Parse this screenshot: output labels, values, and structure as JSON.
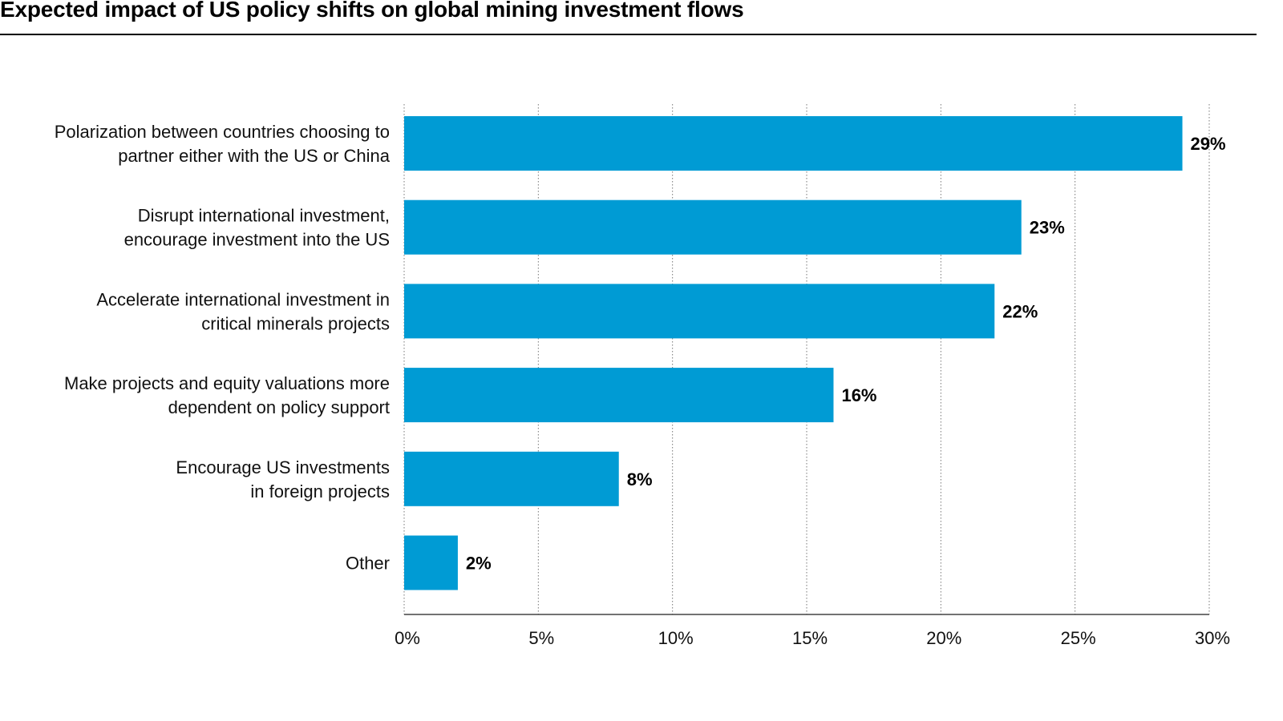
{
  "chart_data": {
    "type": "bar",
    "orientation": "horizontal",
    "title": "Expected impact of US policy shifts on global mining investment flows",
    "categories": [
      [
        "Polarization between countries choosing to",
        "partner either with the US or China"
      ],
      [
        "Disrupt international investment,",
        "encourage investment into the US"
      ],
      [
        "Accelerate international investment in",
        "critical minerals projects"
      ],
      [
        "Make projects and equity valuations more",
        "dependent on policy support"
      ],
      [
        "Encourage US investments",
        "in foreign projects"
      ],
      [
        "Other"
      ]
    ],
    "values": [
      29,
      23,
      22,
      16,
      8,
      2
    ],
    "value_labels": [
      "29%",
      "23%",
      "22%",
      "16%",
      "8%",
      "2%"
    ],
    "xlim": [
      0,
      30
    ],
    "xticks": [
      0,
      5,
      10,
      15,
      20,
      25,
      30
    ],
    "xtick_labels": [
      "0%",
      "5%",
      "10%",
      "15%",
      "20%",
      "25%",
      "30%"
    ],
    "xlabel": "",
    "ylabel": "",
    "grid": "vertical dotted",
    "bar_color": "#009bd4"
  }
}
